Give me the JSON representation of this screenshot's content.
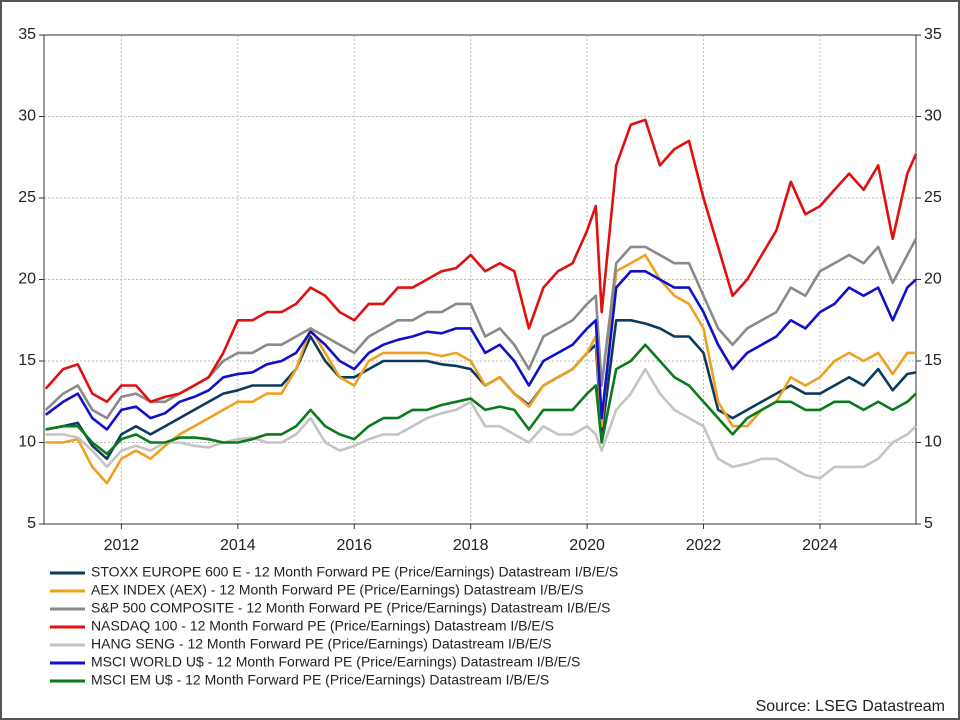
{
  "chart_data": {
    "type": "line",
    "source": "Source: LSEG Datastream",
    "x": [
      2010.7,
      2011.0,
      2011.25,
      2011.5,
      2011.75,
      2012.0,
      2012.25,
      2012.5,
      2012.75,
      2013.0,
      2013.25,
      2013.5,
      2013.75,
      2014.0,
      2014.25,
      2014.5,
      2014.75,
      2015.0,
      2015.25,
      2015.5,
      2015.75,
      2016.0,
      2016.25,
      2016.5,
      2016.75,
      2017.0,
      2017.25,
      2017.5,
      2017.75,
      2018.0,
      2018.25,
      2018.5,
      2018.75,
      2019.0,
      2019.25,
      2019.5,
      2019.75,
      2020.0,
      2020.15,
      2020.25,
      2020.5,
      2020.75,
      2021.0,
      2021.25,
      2021.5,
      2021.75,
      2022.0,
      2022.25,
      2022.5,
      2022.75,
      2023.0,
      2023.25,
      2023.5,
      2023.75,
      2024.0,
      2024.25,
      2024.5,
      2024.75,
      2025.0,
      2025.25,
      2025.5,
      2025.65
    ],
    "xlim": [
      2010.67,
      2025.65
    ],
    "xticks": [
      2012,
      2014,
      2016,
      2018,
      2020,
      2022,
      2024
    ],
    "ylim": [
      5,
      35
    ],
    "yticks": [
      5,
      10,
      15,
      20,
      25,
      30,
      35
    ],
    "grid": true,
    "series": [
      {
        "name": "STOXX EUROPE 600 E - 12 Month Forward PE (Price/Earnings) Datastream I/B/E/S",
        "color": "#0b3a5e",
        "values": [
          10.8,
          11,
          11.2,
          9.8,
          9,
          10.5,
          11,
          10.5,
          11,
          11.5,
          12,
          12.5,
          13,
          13.2,
          13.5,
          13.5,
          13.5,
          14.5,
          16.5,
          15,
          14,
          14,
          14.5,
          15,
          15,
          15,
          15,
          14.8,
          14.7,
          14.5,
          13.5,
          14,
          13,
          12.3,
          13.5,
          14,
          14.5,
          15.5,
          16,
          10.5,
          17.5,
          17.5,
          17.3,
          17,
          16.5,
          16.5,
          15.5,
          12,
          11.5,
          12,
          12.5,
          13,
          13.5,
          13,
          13,
          13.5,
          14,
          13.5,
          14.5,
          13.2,
          14.2,
          14.3
        ]
      },
      {
        "name": "AEX INDEX (AEX) - 12 Month Forward PE (Price/Earnings) Datastream I/B/E/S",
        "color": "#f0a020",
        "values": [
          10,
          10,
          10.2,
          8.5,
          7.5,
          9,
          9.5,
          9,
          9.8,
          10.5,
          11,
          11.5,
          12,
          12.5,
          12.5,
          13,
          13,
          14.5,
          17,
          15.5,
          14,
          13.5,
          15,
          15.5,
          15.5,
          15.5,
          15.5,
          15.3,
          15.5,
          15,
          13.5,
          14,
          13,
          12.2,
          13.5,
          14,
          14.5,
          15.5,
          16.5,
          11,
          20.5,
          21,
          21.5,
          20,
          19,
          18.5,
          17,
          12.5,
          11,
          11,
          12,
          12.5,
          14,
          13.5,
          14,
          15,
          15.5,
          15,
          15.5,
          14.2,
          15.5,
          15.5
        ]
      },
      {
        "name": "S&P 500 COMPOSITE - 12 Month Forward PE (Price/Earnings) Datastream I/B/E/S",
        "color": "#8a8a8a",
        "values": [
          12,
          13,
          13.5,
          12,
          11.5,
          12.8,
          13,
          12.5,
          12.5,
          13,
          13.5,
          14,
          15,
          15.5,
          15.5,
          16,
          16,
          16.5,
          17,
          16.5,
          16,
          15.5,
          16.5,
          17,
          17.5,
          17.5,
          18,
          18,
          18.5,
          18.5,
          16.5,
          17,
          16,
          14.5,
          16.5,
          17,
          17.5,
          18.5,
          19,
          13.5,
          21,
          22,
          22,
          21.5,
          21,
          21,
          19,
          17,
          16,
          17,
          17.5,
          18,
          19.5,
          19,
          20.5,
          21,
          21.5,
          21,
          22,
          19.8,
          21.5,
          22.5
        ]
      },
      {
        "name": "NASDAQ 100 - 12 Month Forward PE (Price/Earnings) Datastream I/B/E/S",
        "color": "#e01010",
        "values": [
          13.3,
          14.5,
          14.8,
          13,
          12.5,
          13.5,
          13.5,
          12.5,
          12.8,
          13,
          13.5,
          14,
          15.5,
          17.5,
          17.5,
          18,
          18,
          18.5,
          19.5,
          19,
          18,
          17.5,
          18.5,
          18.5,
          19.5,
          19.5,
          20,
          20.5,
          20.7,
          21.5,
          20.5,
          21,
          20.5,
          17,
          19.5,
          20.5,
          21,
          23,
          24.5,
          18,
          27,
          29.5,
          29.8,
          27,
          28,
          28.5,
          25,
          22,
          19,
          20,
          21.5,
          23,
          26,
          24,
          24.5,
          25.5,
          26.5,
          25.5,
          27,
          22.5,
          26.5,
          27.7
        ]
      },
      {
        "name": "HANG SENG - 12 Month Forward PE (Price/Earnings) Datastream I/B/E/S",
        "color": "#c4c4c4",
        "values": [
          10.5,
          10.5,
          10.3,
          9.5,
          8.5,
          9.5,
          9.8,
          9.5,
          10,
          10,
          9.8,
          9.7,
          10,
          10.2,
          10.3,
          10,
          10,
          10.5,
          11.5,
          10,
          9.5,
          9.8,
          10.2,
          10.5,
          10.5,
          11,
          11.5,
          11.8,
          12,
          12.5,
          11,
          11,
          10.5,
          10,
          11,
          10.5,
          10.5,
          11,
          10.5,
          9.5,
          12,
          13,
          14.5,
          13,
          12,
          11.5,
          11,
          9,
          8.5,
          8.7,
          9,
          9,
          8.5,
          8,
          7.8,
          8.5,
          8.5,
          8.5,
          9,
          10,
          10.5,
          11
        ]
      },
      {
        "name": "MSCI WORLD U$ - 12 Month Forward PE (Price/Earnings) Datastream I/B/E/S",
        "color": "#1010c8",
        "values": [
          11.7,
          12.5,
          13,
          11.5,
          10.8,
          12,
          12.2,
          11.5,
          11.8,
          12.5,
          12.8,
          13.2,
          14,
          14.2,
          14.3,
          14.8,
          15,
          15.5,
          16.8,
          16,
          15,
          14.5,
          15.5,
          16,
          16.3,
          16.5,
          16.8,
          16.7,
          17,
          17,
          15.5,
          16,
          15,
          13.5,
          15,
          15.5,
          16,
          17,
          17.5,
          11.5,
          19.5,
          20.5,
          20.5,
          20,
          19.5,
          19.5,
          18,
          16,
          14.5,
          15.5,
          16,
          16.5,
          17.5,
          17,
          18,
          18.5,
          19.5,
          19,
          19.5,
          17.5,
          19.5,
          20
        ]
      },
      {
        "name": "MSCI EM U$ - 12 Month Forward PE (Price/Earnings) Datastream I/B/E/S",
        "color": "#0a7a1a",
        "values": [
          10.8,
          11,
          11,
          10,
          9.3,
          10.2,
          10.5,
          10,
          10,
          10.3,
          10.3,
          10.2,
          10,
          10,
          10.2,
          10.5,
          10.5,
          11,
          12,
          11,
          10.5,
          10.2,
          11,
          11.5,
          11.5,
          12,
          12,
          12.3,
          12.5,
          12.7,
          12,
          12.2,
          12,
          10.8,
          12,
          12,
          12,
          13,
          13.5,
          10,
          14.5,
          15,
          16,
          15,
          14,
          13.5,
          12.5,
          11.5,
          10.5,
          11.5,
          12,
          12.5,
          12.5,
          12,
          12,
          12.5,
          12.5,
          12,
          12.5,
          12,
          12.5,
          13
        ]
      }
    ]
  }
}
